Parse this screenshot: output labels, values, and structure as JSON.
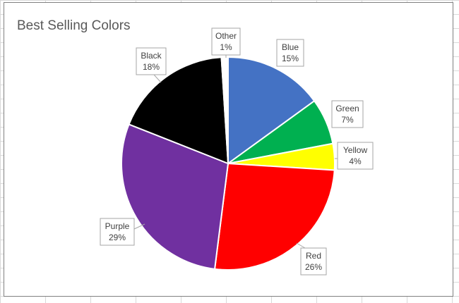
{
  "chart_data": {
    "type": "pie",
    "title": "Best Selling Colors",
    "slices": [
      {
        "label": "Blue",
        "value": 15,
        "pct_label": "15%",
        "color": "#4472C4"
      },
      {
        "label": "Green",
        "value": 7,
        "pct_label": "7%",
        "color": "#00B050"
      },
      {
        "label": "Yellow",
        "value": 4,
        "pct_label": "4%",
        "color": "#FFFF00"
      },
      {
        "label": "Red",
        "value": 26,
        "pct_label": "26%",
        "color": "#FF0000"
      },
      {
        "label": "Purple",
        "value": 29,
        "pct_label": "29%",
        "color": "#7030A0"
      },
      {
        "label": "Black",
        "value": 18,
        "pct_label": "18%",
        "color": "#000000"
      },
      {
        "label": "Other",
        "value": 1,
        "pct_label": "1%",
        "color": "#FFFFFF"
      }
    ],
    "legend": "none",
    "data_labels": "callouts with category name and percentage"
  }
}
